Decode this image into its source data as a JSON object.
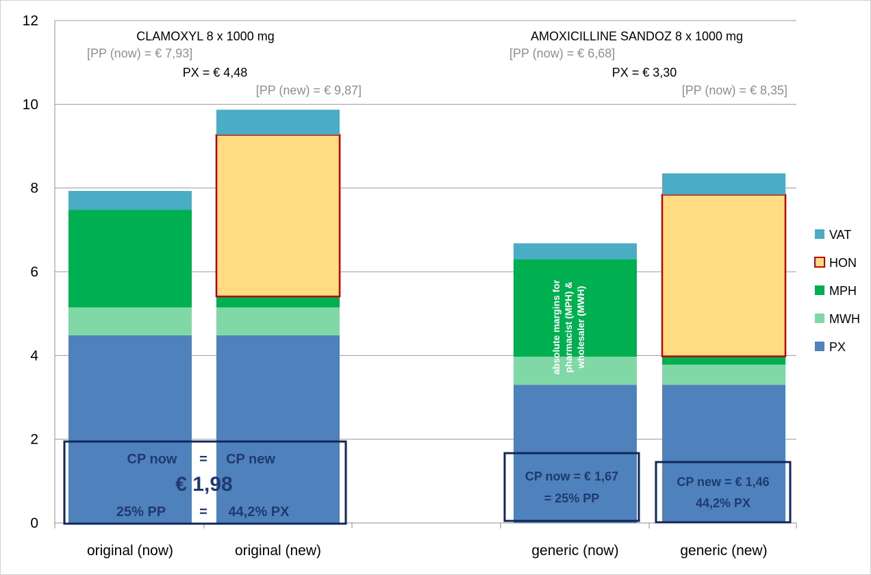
{
  "chart_data": {
    "type": "bar",
    "stacked": true,
    "categories": [
      "original (now)",
      "original (new)",
      "generic (now)",
      "generic (new)"
    ],
    "ylim": [
      0,
      12
    ],
    "yticks": [
      0,
      2,
      4,
      6,
      8,
      10,
      12
    ],
    "grid": true,
    "legend_position": "right",
    "series": [
      {
        "name": "PX",
        "color": "#4f81bd",
        "values": [
          4.48,
          4.48,
          3.3,
          3.3
        ]
      },
      {
        "name": "MWH",
        "color": "#80d8a6",
        "values": [
          0.67,
          0.67,
          0.67,
          0.48
        ]
      },
      {
        "name": "MPH",
        "color": "#00b050",
        "values": [
          2.33,
          0.26,
          2.33,
          0.2
        ]
      },
      {
        "name": "HON",
        "color": "#ffdc82",
        "outline": "#c00000",
        "values": [
          0,
          3.86,
          0,
          3.86
        ]
      },
      {
        "name": "VAT",
        "color": "#4bacc6",
        "values": [
          0.45,
          0.6,
          0.38,
          0.51
        ]
      }
    ],
    "legend_order": [
      "VAT",
      "HON",
      "MPH",
      "MWH",
      "PX"
    ],
    "annotations": {
      "clamoxyl_title": "CLAMOXYL 8 x 1000 mg",
      "clamoxyl_pp_now": "[PP (now) = € 7,93]",
      "clamoxyl_px": "PX = € 4,48",
      "clamoxyl_pp_new": "[PP (new) = € 9,87]",
      "amox_title": "AMOXICILLINE SANDOZ 8 x 1000 mg",
      "amox_pp_now": "[PP (now) = € 6,68]",
      "amox_px": "PX = € 3,30",
      "amox_pp_new": "[PP (now) = € 8,35]",
      "margin_note_line1": "absolute margins for",
      "margin_note_line2": "pharmacist (MPH) &",
      "margin_note_line3": "wholesaler (MWH)",
      "cp_orig_line1_left": "CP now",
      "cp_orig_line1_eq": "=",
      "cp_orig_line1_right": "CP new",
      "cp_orig_value": "€ 1,98",
      "cp_orig_line3_left": "25% PP",
      "cp_orig_line3_eq": "=",
      "cp_orig_line3_right": "44,2% PX",
      "cp_gen_now_line1": "CP now  = € 1,67",
      "cp_gen_now_line2": "= 25% PP",
      "cp_gen_new_line1": "CP new = € 1,46",
      "cp_gen_new_line2": "44,2% PX"
    }
  }
}
